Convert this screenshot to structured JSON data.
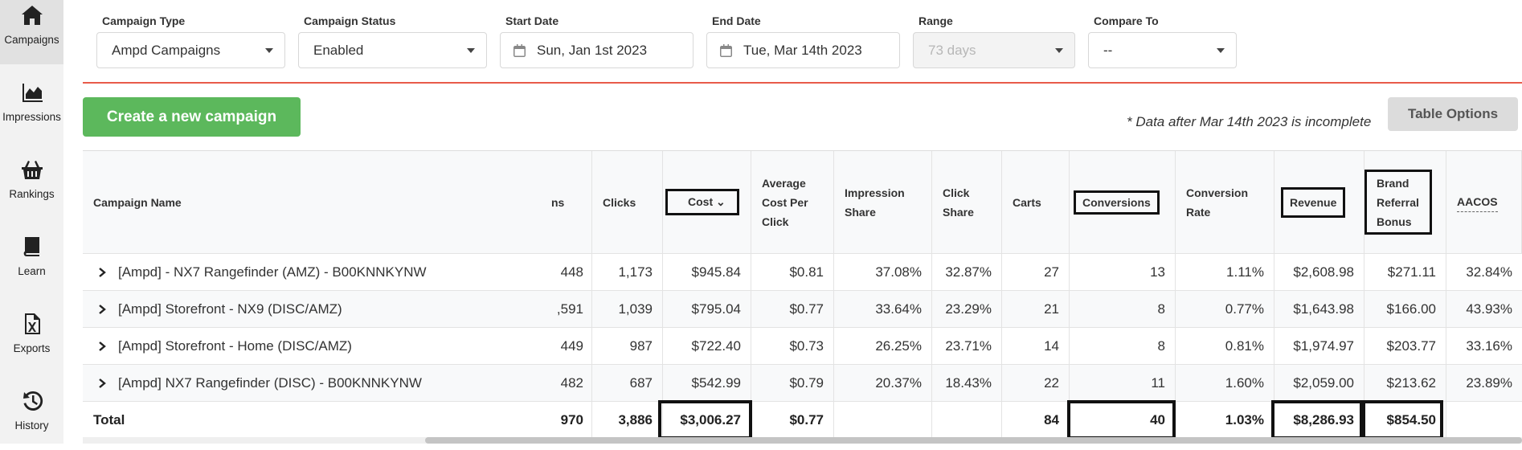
{
  "sidebar": {
    "items": [
      {
        "label": "Campaigns",
        "icon": "home-icon"
      },
      {
        "label": "Impressions",
        "icon": "area-chart-icon"
      },
      {
        "label": "Rankings",
        "icon": "basket-icon"
      },
      {
        "label": "Learn",
        "icon": "book-icon"
      },
      {
        "label": "Exports",
        "icon": "excel-file-icon"
      },
      {
        "label": "History",
        "icon": "history-icon"
      }
    ]
  },
  "filters": {
    "campaign_type": {
      "label": "Campaign Type",
      "value": "Ampd Campaigns"
    },
    "campaign_status": {
      "label": "Campaign Status",
      "value": "Enabled"
    },
    "start_date": {
      "label": "Start Date",
      "value": "Sun, Jan 1st 2023"
    },
    "end_date": {
      "label": "End Date",
      "value": "Tue, Mar 14th 2023"
    },
    "range": {
      "label": "Range",
      "placeholder": "73 days"
    },
    "compare_to": {
      "label": "Compare To",
      "value": "--"
    }
  },
  "actions": {
    "create_label": "Create a new campaign",
    "note": "* Data after Mar 14th 2023 is incomplete",
    "table_options_label": "Table Options"
  },
  "table": {
    "headers": {
      "campaign_name": "Campaign Name",
      "impressions_partial": "ns",
      "clicks": "Clicks",
      "cost": "Cost",
      "avg_cpc": "Average Cost Per Click",
      "impression_share": "Impression Share",
      "click_share": "Click Share",
      "carts": "Carts",
      "conversions": "Conversions",
      "conversion_rate": "Conversion Rate",
      "revenue": "Revenue",
      "brand_referral_bonus": "Brand Referral Bonus",
      "aacos": "AACOS"
    },
    "rows": [
      {
        "name": "[Ampd] - NX7 Rangefinder (AMZ) - B00KNNKYNW",
        "impressions": "448",
        "clicks": "1,173",
        "cost": "$945.84",
        "avg_cpc": "$0.81",
        "impression_share": "37.08%",
        "click_share": "32.87%",
        "carts": "27",
        "conversions": "13",
        "conversion_rate": "1.11%",
        "revenue": "$2,608.98",
        "brand_referral_bonus": "$271.11",
        "aacos": "32.84%"
      },
      {
        "name": "[Ampd] Storefront - NX9 (DISC/AMZ)",
        "impressions": ",591",
        "clicks": "1,039",
        "cost": "$795.04",
        "avg_cpc": "$0.77",
        "impression_share": "33.64%",
        "click_share": "23.29%",
        "carts": "21",
        "conversions": "8",
        "conversion_rate": "0.77%",
        "revenue": "$1,643.98",
        "brand_referral_bonus": "$166.00",
        "aacos": "43.93%"
      },
      {
        "name": "[Ampd] Storefront - Home (DISC/AMZ)",
        "impressions": "449",
        "clicks": "987",
        "cost": "$722.40",
        "avg_cpc": "$0.73",
        "impression_share": "26.25%",
        "click_share": "23.71%",
        "carts": "14",
        "conversions": "8",
        "conversion_rate": "0.81%",
        "revenue": "$1,974.97",
        "brand_referral_bonus": "$203.77",
        "aacos": "33.16%"
      },
      {
        "name": "[Ampd] NX7 Rangefinder (DISC) - B00KNNKYNW",
        "impressions": "482",
        "clicks": "687",
        "cost": "$542.99",
        "avg_cpc": "$0.79",
        "impression_share": "20.37%",
        "click_share": "18.43%",
        "carts": "22",
        "conversions": "11",
        "conversion_rate": "1.60%",
        "revenue": "$2,059.00",
        "brand_referral_bonus": "$213.62",
        "aacos": "23.89%"
      }
    ],
    "total": {
      "label": "Total",
      "impressions": "970",
      "clicks": "3,886",
      "cost": "$3,006.27",
      "avg_cpc": "$0.77",
      "carts": "84",
      "conversions": "40",
      "conversion_rate": "1.03%",
      "revenue": "$8,286.93",
      "brand_referral_bonus": "$854.50"
    }
  },
  "colors": {
    "create_button": "#5cb85c",
    "divider": "#e85b4a",
    "sidebar_bg": "#f2f2f2"
  }
}
